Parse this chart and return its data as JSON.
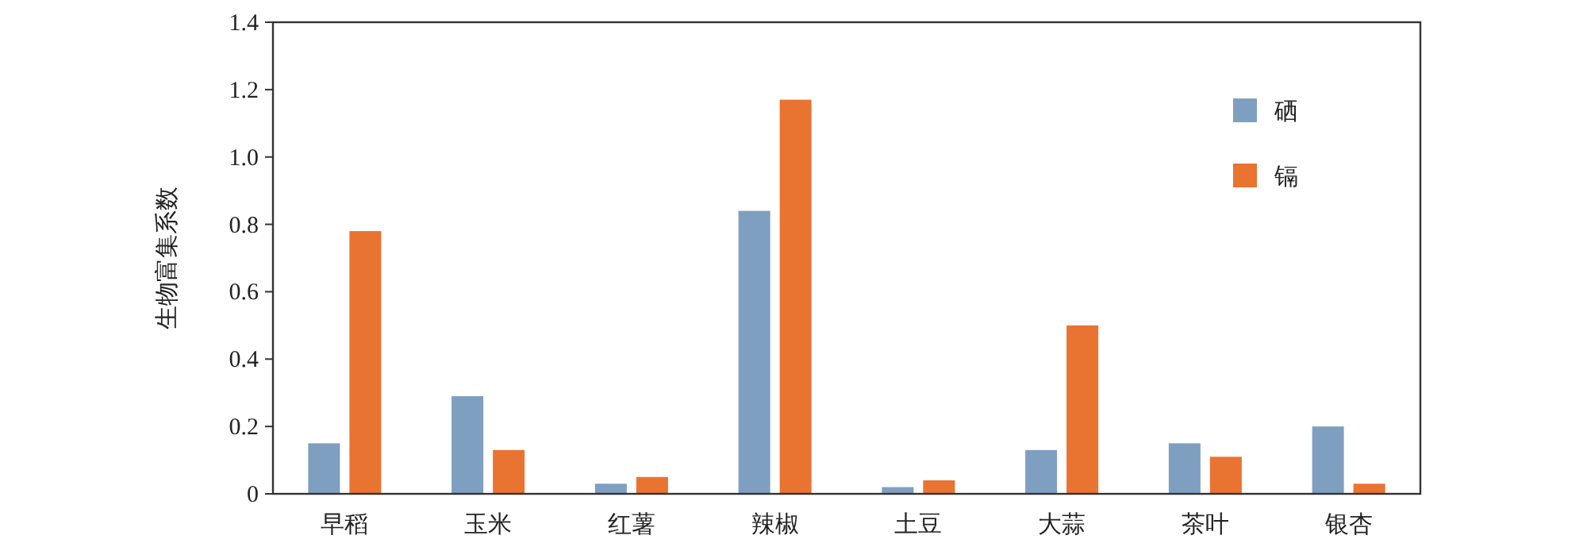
{
  "chart_data": {
    "type": "bar",
    "ylabel": "生物富集系数",
    "categories": [
      "早稻",
      "玉米",
      "红薯",
      "辣椒",
      "土豆",
      "大蒜",
      "茶叶",
      "银杏"
    ],
    "series": [
      {
        "name": "硒",
        "color": "#7f9fc0",
        "values": [
          0.15,
          0.29,
          0.03,
          0.84,
          0.02,
          0.13,
          0.15,
          0.2
        ]
      },
      {
        "name": "镉",
        "color": "#e97331",
        "values": [
          0.78,
          0.13,
          0.05,
          1.17,
          0.04,
          0.5,
          0.11,
          0.03
        ]
      }
    ],
    "ylim": [
      0,
      1.4
    ],
    "yticks": [
      {
        "value": 0,
        "label": "0"
      },
      0.2,
      0.4,
      0.6,
      0.8,
      {
        "value": 1.0,
        "label": "1.0"
      },
      1.2,
      1.4
    ],
    "grid": false,
    "legend": "top right"
  }
}
